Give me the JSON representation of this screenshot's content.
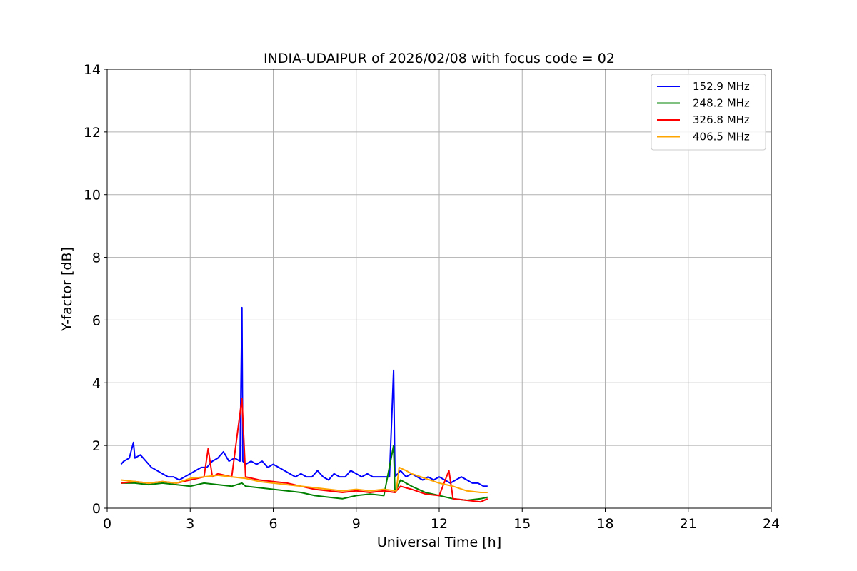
{
  "chart_data": {
    "type": "line",
    "title": "INDIA-UDAIPUR of 2026/02/08 with focus code = 02",
    "xlabel": "Universal Time [h]",
    "ylabel": "Y-factor [dB]",
    "xlim": [
      0,
      24
    ],
    "ylim": [
      0,
      14
    ],
    "xticks": [
      0,
      3,
      6,
      9,
      12,
      15,
      18,
      21,
      24
    ],
    "yticks": [
      0,
      2,
      4,
      6,
      8,
      10,
      12,
      14
    ],
    "grid": true,
    "legend_position": "top-right",
    "series": [
      {
        "name": "152.9 MHz",
        "color": "#0000ff",
        "x": [
          0.5,
          0.6,
          0.8,
          0.95,
          1.0,
          1.2,
          1.4,
          1.6,
          1.8,
          2.0,
          2.2,
          2.4,
          2.6,
          2.8,
          3.0,
          3.2,
          3.4,
          3.6,
          3.8,
          4.0,
          4.2,
          4.4,
          4.6,
          4.8,
          4.87,
          4.9,
          5.0,
          5.2,
          5.4,
          5.6,
          5.8,
          6.0,
          6.2,
          6.4,
          6.6,
          6.8,
          7.0,
          7.2,
          7.4,
          7.6,
          7.8,
          8.0,
          8.2,
          8.4,
          8.6,
          8.8,
          9.0,
          9.2,
          9.4,
          9.6,
          9.8,
          10.0,
          10.2,
          10.35,
          10.4,
          10.5,
          10.6,
          10.8,
          11.0,
          11.2,
          11.4,
          11.6,
          11.8,
          12.0,
          12.2,
          12.4,
          12.6,
          12.8,
          13.0,
          13.2,
          13.4,
          13.6,
          13.75
        ],
        "y": [
          1.4,
          1.5,
          1.6,
          2.1,
          1.6,
          1.7,
          1.5,
          1.3,
          1.2,
          1.1,
          1.0,
          1.0,
          0.9,
          1.0,
          1.1,
          1.2,
          1.3,
          1.3,
          1.5,
          1.6,
          1.8,
          1.5,
          1.6,
          1.5,
          6.4,
          1.5,
          1.4,
          1.5,
          1.4,
          1.5,
          1.3,
          1.4,
          1.3,
          1.2,
          1.1,
          1.0,
          1.1,
          1.0,
          1.0,
          1.2,
          1.0,
          0.9,
          1.1,
          1.0,
          1.0,
          1.2,
          1.1,
          1.0,
          1.1,
          1.0,
          1.0,
          1.0,
          1.0,
          4.4,
          1.0,
          1.1,
          1.2,
          1.0,
          1.1,
          1.0,
          0.9,
          1.0,
          0.9,
          1.0,
          0.9,
          0.8,
          0.9,
          1.0,
          0.9,
          0.8,
          0.8,
          0.7,
          0.7
        ]
      },
      {
        "name": "248.2 MHz",
        "color": "#008000",
        "x": [
          0.5,
          1.0,
          1.5,
          2.0,
          2.5,
          3.0,
          3.5,
          4.0,
          4.5,
          4.87,
          5.0,
          5.5,
          6.0,
          6.5,
          7.0,
          7.5,
          8.0,
          8.5,
          9.0,
          9.5,
          10.0,
          10.35,
          10.4,
          10.6,
          11.0,
          11.5,
          12.0,
          12.5,
          13.0,
          13.5,
          13.75
        ],
        "y": [
          0.8,
          0.8,
          0.75,
          0.8,
          0.75,
          0.7,
          0.8,
          0.75,
          0.7,
          0.8,
          0.7,
          0.65,
          0.6,
          0.55,
          0.5,
          0.4,
          0.35,
          0.3,
          0.4,
          0.45,
          0.4,
          2.0,
          0.5,
          0.9,
          0.7,
          0.5,
          0.4,
          0.3,
          0.25,
          0.3,
          0.35
        ]
      },
      {
        "name": "326.8 MHz",
        "color": "#ff0000",
        "x": [
          0.5,
          1.0,
          1.5,
          2.0,
          2.5,
          3.0,
          3.5,
          3.65,
          3.8,
          4.0,
          4.5,
          4.87,
          5.0,
          5.5,
          6.0,
          6.5,
          7.0,
          7.5,
          8.0,
          8.5,
          9.0,
          9.5,
          10.0,
          10.4,
          10.6,
          11.0,
          11.5,
          12.0,
          12.35,
          12.5,
          13.0,
          13.5,
          13.75
        ],
        "y": [
          0.8,
          0.85,
          0.8,
          0.85,
          0.8,
          0.9,
          1.0,
          1.9,
          1.0,
          1.1,
          1.0,
          3.5,
          1.0,
          0.9,
          0.85,
          0.8,
          0.7,
          0.6,
          0.55,
          0.5,
          0.55,
          0.5,
          0.55,
          0.5,
          0.7,
          0.6,
          0.45,
          0.4,
          1.2,
          0.3,
          0.25,
          0.2,
          0.3
        ]
      },
      {
        "name": "406.5 MHz",
        "color": "#ffa500",
        "x": [
          0.5,
          1.0,
          1.5,
          2.0,
          2.5,
          3.0,
          3.5,
          4.0,
          4.5,
          5.0,
          5.5,
          6.0,
          6.5,
          7.0,
          7.5,
          8.0,
          8.5,
          9.0,
          9.5,
          10.0,
          10.45,
          10.55,
          10.8,
          11.0,
          11.5,
          12.0,
          12.5,
          13.0,
          13.5,
          13.75
        ],
        "y": [
          0.9,
          0.85,
          0.8,
          0.85,
          0.8,
          0.95,
          1.0,
          1.05,
          1.0,
          0.95,
          0.85,
          0.8,
          0.75,
          0.7,
          0.65,
          0.6,
          0.55,
          0.6,
          0.55,
          0.6,
          0.55,
          1.3,
          1.2,
          1.1,
          0.95,
          0.8,
          0.7,
          0.55,
          0.5,
          0.5
        ]
      }
    ]
  }
}
